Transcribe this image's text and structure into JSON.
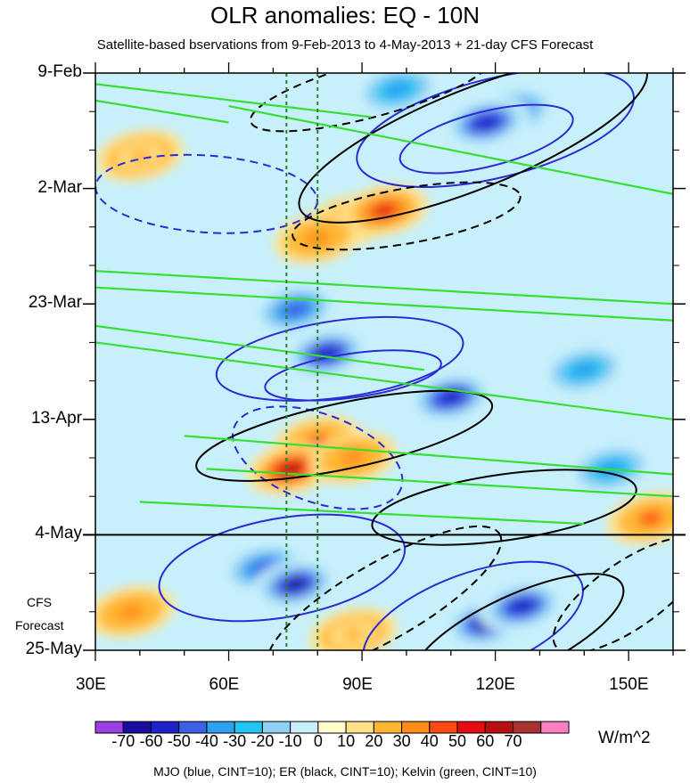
{
  "chart_data": {
    "type": "heatmap",
    "title": "OLR anomalies: EQ - 10N",
    "subtitle": "Satellite-based bservations from 9-Feb-2013 to 4-May-2013 + 21-day CFS Forecast",
    "x_axis": {
      "range": [
        30,
        160
      ],
      "ticks": [
        30,
        60,
        90,
        120,
        150
      ],
      "tick_labels": [
        "30E",
        "60E",
        "90E",
        "120E",
        "150E"
      ]
    },
    "y_axis": {
      "range_days": [
        0,
        105
      ],
      "ticks_days": [
        0,
        21,
        42,
        63,
        84,
        105
      ],
      "tick_labels": [
        "9-Feb",
        "2-Mar",
        "23-Mar",
        "13-Apr",
        "4-May",
        "25-May"
      ]
    },
    "forecast_divider_day": 84,
    "forecast_label_line1": "CFS",
    "forecast_label_line2": "Forecast",
    "reference_lines_lon": [
      73,
      80
    ],
    "colorbar": {
      "levels": [
        "-70",
        "-60",
        "-50",
        "-40",
        "-30",
        "-20",
        "-10",
        "0",
        "10",
        "20",
        "30",
        "40",
        "50",
        "60",
        "70"
      ],
      "colors": [
        "#9B3FE6",
        "#1A0C9E",
        "#1E22C8",
        "#3C5FE6",
        "#2FA0F0",
        "#22C4F2",
        "#8FD0F5",
        "#C8F0FB",
        "#FFFFCC",
        "#FFE38A",
        "#FFB733",
        "#FF8C1A",
        "#FF4A12",
        "#E60C12",
        "#B80E12",
        "#A83232",
        "#FF7FBF"
      ],
      "units": "W/m^2"
    },
    "anomaly_features": [
      {
        "lon": 124,
        "day": 7,
        "value": -50
      },
      {
        "lon": 118,
        "day": 9,
        "value": -60
      },
      {
        "lon": 98,
        "day": 3,
        "value": -40
      },
      {
        "lon": 87,
        "day": 27,
        "value": 40
      },
      {
        "lon": 95,
        "day": 25,
        "value": 50
      },
      {
        "lon": 80,
        "day": 30,
        "value": 30
      },
      {
        "lon": 40,
        "day": 15,
        "value": 20
      },
      {
        "lon": 75,
        "day": 43,
        "value": -50
      },
      {
        "lon": 82,
        "day": 51,
        "value": -60
      },
      {
        "lon": 110,
        "day": 59,
        "value": -60
      },
      {
        "lon": 140,
        "day": 54,
        "value": -40
      },
      {
        "lon": 80,
        "day": 67,
        "value": 40
      },
      {
        "lon": 74,
        "day": 72,
        "value": 60
      },
      {
        "lon": 88,
        "day": 70,
        "value": 30
      },
      {
        "lon": 68,
        "day": 90,
        "value": -50
      },
      {
        "lon": 75,
        "day": 93,
        "value": -70
      },
      {
        "lon": 118,
        "day": 100,
        "value": -70
      },
      {
        "lon": 126,
        "day": 97,
        "value": -60
      },
      {
        "lon": 38,
        "day": 98,
        "value": 30
      },
      {
        "lon": 88,
        "day": 102,
        "value": 20
      },
      {
        "lon": 146,
        "day": 72,
        "value": -40
      },
      {
        "lon": 155,
        "day": 81,
        "value": 40
      }
    ],
    "contours": {
      "mjo_blue": [
        {
          "lon": 120,
          "day": 10,
          "rx": 32,
          "ry": 9,
          "angle": -14,
          "sign": "neg"
        },
        {
          "lon": 118,
          "day": 12,
          "rx": 20,
          "ry": 5,
          "angle": -14,
          "sign": "neg"
        },
        {
          "lon": 55,
          "day": 22,
          "rx": 25,
          "ry": 7,
          "angle": 4,
          "sign": "pos"
        },
        {
          "lon": 85,
          "day": 52,
          "rx": 28,
          "ry": 7,
          "angle": -8,
          "sign": "neg"
        },
        {
          "lon": 88,
          "day": 55,
          "rx": 20,
          "ry": 4,
          "angle": -8,
          "sign": "neg"
        },
        {
          "lon": 80,
          "day": 70,
          "rx": 20,
          "ry": 8,
          "angle": 20,
          "sign": "pos"
        },
        {
          "lon": 72,
          "day": 90,
          "rx": 28,
          "ry": 9,
          "angle": -10,
          "sign": "neg"
        },
        {
          "lon": 115,
          "day": 100,
          "rx": 26,
          "ry": 9,
          "angle": -20,
          "sign": "neg"
        }
      ],
      "er_black": [
        {
          "lon": 115,
          "day": 12,
          "rx": 42,
          "ry": 9,
          "angle": -22,
          "sign": "neg"
        },
        {
          "lon": 92,
          "day": 3,
          "rx": 28,
          "ry": 5,
          "angle": -15,
          "sign": "pos"
        },
        {
          "lon": 100,
          "day": 26,
          "rx": 26,
          "ry": 5,
          "angle": -10,
          "sign": "pos"
        },
        {
          "lon": 86,
          "day": 66,
          "rx": 34,
          "ry": 6,
          "angle": -12,
          "sign": "neg"
        },
        {
          "lon": 122,
          "day": 79,
          "rx": 30,
          "ry": 6,
          "angle": -8,
          "sign": "neg"
        },
        {
          "lon": 95,
          "day": 96,
          "rx": 30,
          "ry": 7,
          "angle": -30,
          "sign": "pos"
        },
        {
          "lon": 125,
          "day": 102,
          "rx": 26,
          "ry": 7,
          "angle": -25,
          "sign": "neg"
        },
        {
          "lon": 150,
          "day": 95,
          "rx": 20,
          "ry": 6,
          "angle": -35,
          "sign": "pos"
        }
      ],
      "kelvin_green_lines": [
        {
          "lon0": 30,
          "day0": 2,
          "lon1": 92,
          "day1": 8
        },
        {
          "lon0": 30,
          "day0": 5,
          "lon1": 60,
          "day1": 9
        },
        {
          "lon0": 60,
          "day0": 6,
          "lon1": 160,
          "day1": 22
        },
        {
          "lon0": 30,
          "day0": 36,
          "lon1": 160,
          "day1": 42
        },
        {
          "lon0": 30,
          "day0": 39,
          "lon1": 160,
          "day1": 45
        },
        {
          "lon0": 30,
          "day0": 49,
          "lon1": 160,
          "day1": 63
        },
        {
          "lon0": 30,
          "day0": 46,
          "lon1": 104,
          "day1": 54
        },
        {
          "lon0": 50,
          "day0": 66,
          "lon1": 160,
          "day1": 73
        },
        {
          "lon0": 55,
          "day0": 72,
          "lon1": 160,
          "day1": 77
        },
        {
          "lon0": 40,
          "day0": 78,
          "lon1": 140,
          "day1": 82
        }
      ]
    },
    "legend": "MJO (blue, CINT=10); ER (black, CINT=10); Kelvin (green, CINT=10)"
  }
}
